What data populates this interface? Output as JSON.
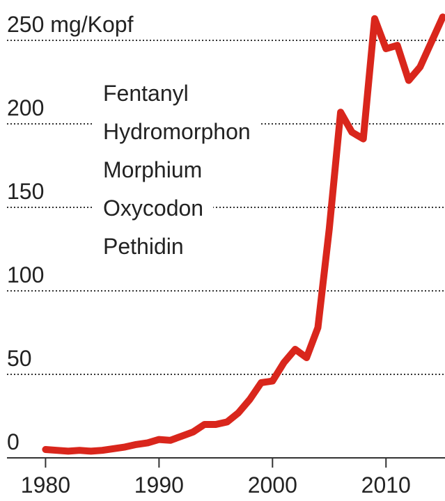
{
  "chart_data": {
    "type": "line",
    "annotations": [
      "Fentanyl",
      "Hydromorphon",
      "Morphium",
      "Oxycodon",
      "Pethidin"
    ],
    "x": [
      1980,
      1981,
      1982,
      1983,
      1984,
      1985,
      1986,
      1987,
      1988,
      1989,
      1990,
      1991,
      1992,
      1993,
      1994,
      1995,
      1996,
      1997,
      1998,
      1999,
      2000,
      2001,
      2002,
      2003,
      2004,
      2005,
      2006,
      2007,
      2008,
      2009,
      2010,
      2011,
      2012,
      2013,
      2014,
      2015
    ],
    "series": [
      {
        "color": "#d9261c",
        "values": [
          5,
          4.5,
          4,
          4.5,
          4,
          4.5,
          5.5,
          6.5,
          8,
          9,
          11,
          10.5,
          13,
          15.5,
          20,
          20,
          21.5,
          27,
          35,
          45,
          46,
          57,
          65,
          60,
          78,
          137,
          207,
          195,
          191,
          263,
          245,
          247,
          226,
          234,
          249,
          264
        ]
      }
    ],
    "xlim": [
      1976.6,
      2015.2
    ],
    "xticks": [
      1980,
      1990,
      2000,
      2010
    ],
    "ylim": [
      0,
      270
    ],
    "yticks": [
      0,
      50,
      100,
      150,
      200,
      {
        "value": 250,
        "label": "250 mg/Kopf"
      }
    ],
    "grid": true
  }
}
